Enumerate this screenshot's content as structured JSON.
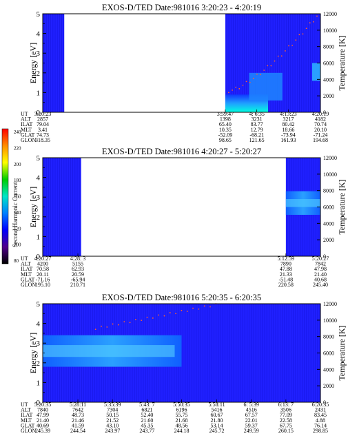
{
  "colorbar": {
    "label": "Second Harmonic Current",
    "ticks": [
      "240",
      "220",
      "200",
      "180",
      "160",
      "140",
      "120",
      "100",
      "80"
    ],
    "stops": [
      "#ff0000",
      "#ff8c00",
      "#ffff00",
      "#00cd00",
      "#00e5c8",
      "#0080ff",
      "#0000ff",
      "#50008c",
      "#000000"
    ]
  },
  "chart_data": [
    {
      "type": "heatmap",
      "title": "EXOS-D/TED   Date:981016  3:20:23 - 4:20:19",
      "ylabel": "Energy [eV]",
      "y2label": "Temperature [K]",
      "ylim": [
        0,
        5
      ],
      "y2lim": [
        0,
        12000
      ],
      "yticks": [
        "0",
        "1",
        "2",
        "3",
        "4",
        "5"
      ],
      "y2ticks": [
        "0",
        "2000",
        "4000",
        "6000",
        "8000",
        "10000",
        "12000"
      ],
      "time_range": [
        "3:20:23",
        "4:20:19"
      ],
      "data_coverage": [
        [
          "3:20:23",
          "3:25:00"
        ],
        [
          "3:59:47",
          "4:20:19"
        ]
      ],
      "ephemeris": {
        "rows": [
          "UT",
          "ALT",
          "ILAT",
          "MLT",
          "GLAT",
          "GLON"
        ],
        "columns": [
          {
            "t": "3:20:23",
            "v": [
              "3:20:23",
              "2857",
              "79.04",
              "3.41",
              "74.73",
              "318.35"
            ]
          },
          {
            "t": "3:59:47",
            "v": [
              "3:59:47",
              "1398",
              "65.40",
              "10.35",
              "-52.09",
              "98.65"
            ]
          },
          {
            "t": "4:06:35",
            "v": [
              "4: 6:35",
              "3231",
              "83.77",
              "12.79",
              "-68.21",
              "121.65"
            ]
          },
          {
            "t": "4:13:23",
            "v": [
              "4:13:23",
              "3217",
              "80.42",
              "18.66",
              "-73.94",
              "161.93"
            ]
          },
          {
            "t": "4:20:19",
            "v": [
              "4:20:19",
              "4182",
              "70.74",
              "20.10",
              "-71.24",
              "194.68"
            ]
          }
        ]
      }
    },
    {
      "type": "heatmap",
      "title": "EXOS-D/TED   Date:981016  4:20:27 - 5:20:27",
      "ylabel": "Energy [eV]",
      "y2label": "Temperature [K]",
      "ylim": [
        0,
        5
      ],
      "y2lim": [
        0,
        12000
      ],
      "yticks": [
        "0",
        "1",
        "2",
        "3",
        "4",
        "5"
      ],
      "y2ticks": [
        "0",
        "2000",
        "4000",
        "6000",
        "8000",
        "10000",
        "12000"
      ],
      "time_range": [
        "4:20:27",
        "5:20:27"
      ],
      "data_coverage": [
        [
          "4:20:27",
          "4:28:45"
        ],
        [
          "5:12:59",
          "5:20:27"
        ]
      ],
      "ephemeris": {
        "rows": [
          "UT",
          "ALT",
          "ILAT",
          "MLT",
          "GLAT",
          "GLON"
        ],
        "columns": [
          {
            "t": "4:20:27",
            "v": [
              "4:20:27",
              "4200",
              "70.58",
              "20.11",
              "-71.16",
              "195.10"
            ]
          },
          {
            "t": "4:28:03",
            "v": [
              "4:28: 3",
              "5155",
              "62.93",
              "20.59",
              "-65.94",
              "210.71"
            ]
          },
          {
            "t": "5:12:59",
            "v": [
              "5:12:59",
              "7890",
              "47.88",
              "21.33",
              "-51.48",
              "220.58"
            ]
          },
          {
            "t": "5:20:27",
            "v": [
              "5:20:27",
              "7842",
              "47.98",
              "21.40",
              "40.68",
              "245.40"
            ]
          }
        ]
      }
    },
    {
      "type": "heatmap",
      "title": "EXOS-D/TED   Date:981016  5:20:35 - 6:20:35",
      "ylabel": "Energy [eV]",
      "y2label": "Temperature [K]",
      "ylim": [
        0,
        5
      ],
      "y2lim": [
        0,
        12000
      ],
      "yticks": [
        "0",
        "1",
        "2",
        "3",
        "4",
        "5"
      ],
      "y2ticks": [
        "0",
        "2000",
        "4000",
        "6000",
        "8000",
        "10000",
        "12000"
      ],
      "time_range": [
        "5:20:35",
        "6:20:35"
      ],
      "data_coverage": [
        [
          "5:20:35",
          "6:20:35"
        ]
      ],
      "ephemeris": {
        "rows": [
          "UT",
          "ALT",
          "ILAT",
          "MLT",
          "GLAT",
          "GLON"
        ],
        "columns": [
          {
            "t": "5:20:35",
            "v": [
              "5:20:35",
              "7840",
              "47.99",
              "21.40",
              "40.69",
              "245.39"
            ]
          },
          {
            "t": "5:28:11",
            "v": [
              "5:28:11",
              "7642",
              "48.73",
              "21.46",
              "41.59",
              "244.54"
            ]
          },
          {
            "t": "5:35:39",
            "v": [
              "5:35:39",
              "7304",
              "50.15",
              "21.52",
              "43.10",
              "243.97"
            ]
          },
          {
            "t": "5:43:07",
            "v": [
              "5:43: 7",
              "6821",
              "52.40",
              "21.60",
              "45.35",
              "243.77"
            ]
          },
          {
            "t": "5:50:35",
            "v": [
              "5:50:35",
              "6196",
              "55.75",
              "21.68",
              "48.56",
              "244.18"
            ]
          },
          {
            "t": "5:58:11",
            "v": [
              "5:58:11",
              "5416",
              "60.67",
              "21.80",
              "53.14",
              "245.72"
            ]
          },
          {
            "t": "6:05:39",
            "v": [
              "6: 5:39",
              "4516",
              "67.57",
              "22.01",
              "59.37",
              "249.59"
            ]
          },
          {
            "t": "6:13:07",
            "v": [
              "6:13: 7",
              "3506",
              "77.09",
              "22.58",
              "67.75",
              "260.15"
            ]
          },
          {
            "t": "6:20:35",
            "v": [
              "6:20:35",
              "2431",
              "83.45",
              "4.88",
              "76.14",
              "298.85"
            ]
          }
        ]
      }
    }
  ]
}
